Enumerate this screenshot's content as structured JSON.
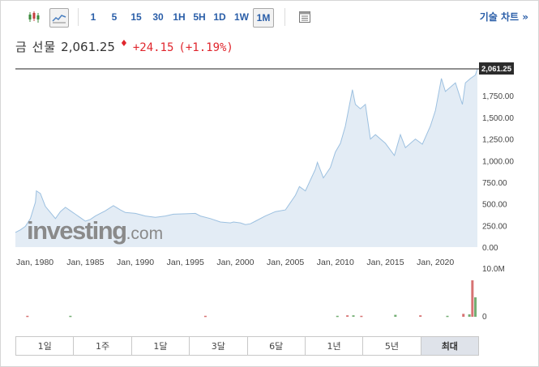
{
  "toolbar": {
    "intervals": [
      "1",
      "5",
      "15",
      "30",
      "1H",
      "5H",
      "1D",
      "1W",
      "1M"
    ],
    "active_interval": "1M",
    "advanced_chart_label": "기술 차트 »"
  },
  "quote": {
    "name": "금 선물",
    "price": "2,061.25",
    "change": "+24.15",
    "change_pct": "(+1.19%)"
  },
  "colors": {
    "link_blue": "#2a5ea8",
    "up_red": "#e0262d",
    "area_fill": "#e3ecf5",
    "area_line": "#9cc0e0"
  },
  "watermark": "investing.com",
  "chart_data": {
    "type": "area",
    "x_ticks": [
      "Jan, 1980",
      "Jan, 1985",
      "Jan, 1990",
      "Jan, 1995",
      "Jan, 2000",
      "Jan, 2005",
      "Jan, 2010",
      "Jan, 2015",
      "Jan, 2020"
    ],
    "y_ticks": [
      "2,061.25",
      "1,750.00",
      "1,500.00",
      "1,250.00",
      "1,000.00",
      "750.00",
      "500.00",
      "250.00",
      "0.00"
    ],
    "ylim": [
      0,
      2061.25
    ],
    "last_price_label": "2,061.25",
    "x_years": [
      1978.0,
      1978.5,
      1979.0,
      1979.5,
      1980.0,
      1980.1,
      1980.5,
      1981.0,
      1981.5,
      1982.0,
      1982.5,
      1983.0,
      1983.5,
      1984.0,
      1984.5,
      1985.0,
      1985.5,
      1986.0,
      1987.0,
      1987.8,
      1988.5,
      1989.0,
      1990.0,
      1991.0,
      1992.0,
      1993.0,
      1993.8,
      1995.0,
      1996.0,
      1996.5,
      1997.5,
      1998.5,
      1999.5,
      1999.8,
      2000.5,
      2001.0,
      2001.5,
      2002.0,
      2003.0,
      2004.0,
      2005.0,
      2006.0,
      2006.4,
      2007.0,
      2008.0,
      2008.2,
      2008.8,
      2009.5,
      2010.0,
      2010.5,
      2011.0,
      2011.7,
      2012.0,
      2012.5,
      2013.0,
      2013.5,
      2014.0,
      2015.0,
      2015.9,
      2016.5,
      2017.0,
      2018.0,
      2018.7,
      2019.5,
      2020.0,
      2020.6,
      2021.0,
      2022.0,
      2022.7,
      2023.0,
      2023.5,
      2024.0,
      2024.2
    ],
    "values": [
      170,
      200,
      240,
      330,
      520,
      650,
      620,
      470,
      400,
      330,
      410,
      460,
      420,
      380,
      340,
      300,
      320,
      360,
      420,
      480,
      430,
      400,
      390,
      360,
      345,
      360,
      380,
      385,
      390,
      360,
      330,
      290,
      280,
      290,
      280,
      260,
      270,
      300,
      360,
      410,
      430,
      600,
      700,
      650,
      900,
      980,
      800,
      920,
      1100,
      1200,
      1400,
      1820,
      1650,
      1600,
      1650,
      1250,
      1300,
      1200,
      1060,
      1300,
      1150,
      1250,
      1190,
      1400,
      1580,
      1950,
      1800,
      1900,
      1650,
      1900,
      1950,
      1990,
      2061.25
    ],
    "volume_ticks": [
      "10.0M",
      "0"
    ],
    "volume": [
      {
        "year": 1979.2,
        "value": 0.2
      },
      {
        "year": 1983.5,
        "value": 0.2
      },
      {
        "year": 1997.0,
        "value": 0.2
      },
      {
        "year": 2010.2,
        "value": 0.2
      },
      {
        "year": 2011.2,
        "value": 0.3
      },
      {
        "year": 2011.8,
        "value": 0.3
      },
      {
        "year": 2012.6,
        "value": 0.2
      },
      {
        "year": 2016.0,
        "value": 0.4
      },
      {
        "year": 2018.5,
        "value": 0.3
      },
      {
        "year": 2021.2,
        "value": 0.2
      },
      {
        "year": 2022.8,
        "value": 0.6
      },
      {
        "year": 2023.4,
        "value": 0.5
      },
      {
        "year": 2023.7,
        "value": 7.5
      },
      {
        "year": 2024.0,
        "value": 4.0
      }
    ]
  },
  "ranges": [
    "1일",
    "1주",
    "1달",
    "3달",
    "6달",
    "1년",
    "5년",
    "최대"
  ],
  "active_range": "최대"
}
